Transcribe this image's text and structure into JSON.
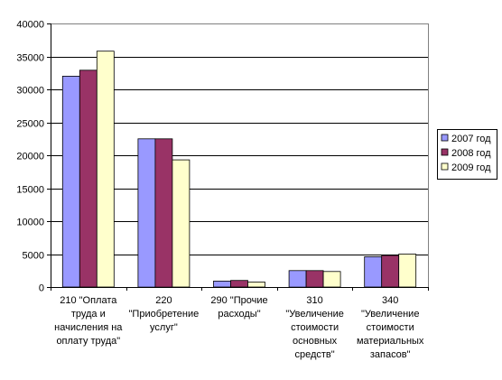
{
  "chart_data": {
    "type": "bar",
    "title": "",
    "xlabel": "",
    "ylabel": "",
    "ylim": [
      0,
      40000
    ],
    "yticks": [
      0,
      5000,
      10000,
      15000,
      20000,
      25000,
      30000,
      35000,
      40000
    ],
    "ytick_labels": [
      "0",
      "5000",
      "10000",
      "15000",
      "20000",
      "25000",
      "30000",
      "35000",
      "40000"
    ],
    "grid": "horizontal major gridlines",
    "legend_position": "right",
    "categories": [
      [
        "210 \"Оплата",
        "труда и",
        "начисления на",
        "оплату труда\""
      ],
      [
        "220",
        "\"Приобретение",
        "услуг\""
      ],
      [
        "290 \"Прочие",
        "расходы\""
      ],
      [
        "310",
        "\"Увеличение",
        "стоимости",
        "основных",
        "средств\""
      ],
      [
        "340",
        "\"Увеличение",
        "стоимости",
        "материальных",
        "запасов\""
      ]
    ],
    "series": [
      {
        "name": "2007 год",
        "color": "#9999ff",
        "values": [
          32000,
          22500,
          900,
          2500,
          4600
        ]
      },
      {
        "name": "2008 год",
        "color": "#993366",
        "values": [
          32900,
          22500,
          1000,
          2500,
          4800
        ]
      },
      {
        "name": "2009 год",
        "color": "#ffffcc",
        "values": [
          35800,
          19300,
          750,
          2350,
          5000
        ]
      }
    ]
  }
}
